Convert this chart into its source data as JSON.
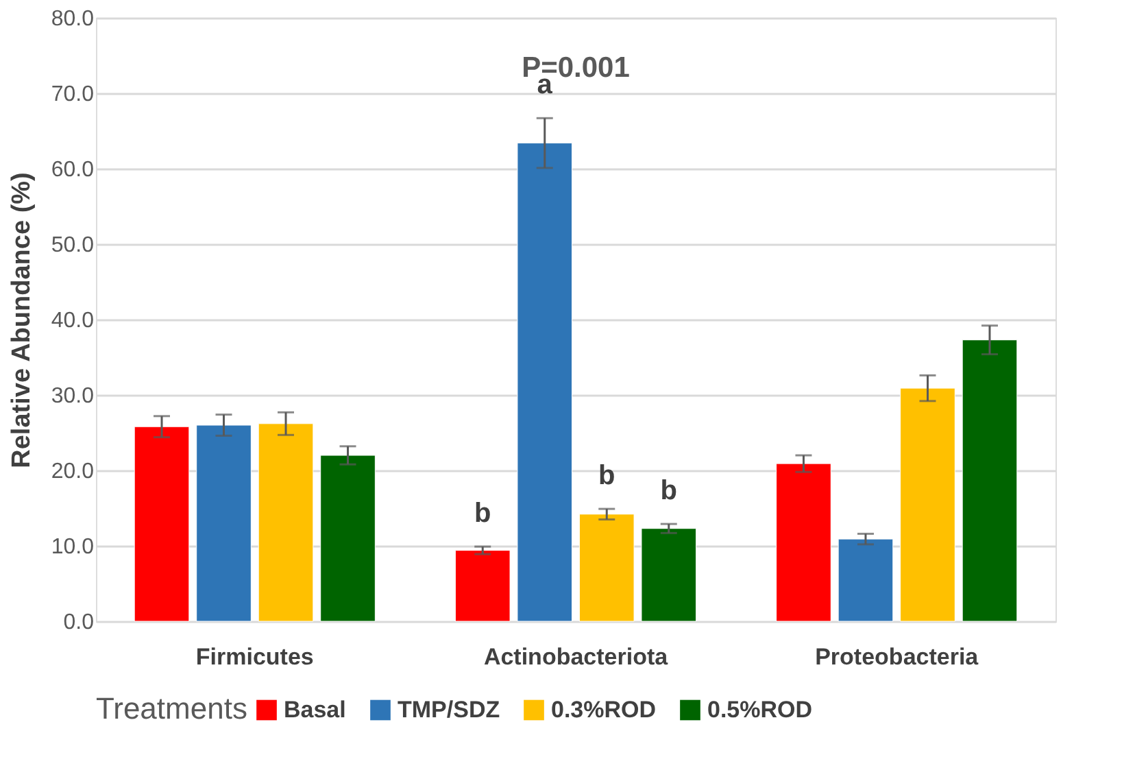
{
  "chart_data": {
    "type": "bar",
    "ylabel": "Relative Abundance (%)",
    "legend_title": "Treatments",
    "categories": [
      "Firmicutes",
      "Actinobacteriota",
      "Proteobacteria"
    ],
    "series": [
      {
        "name": "Basal",
        "color": "#ff0000",
        "values": [
          25.8,
          9.4,
          20.9
        ],
        "errors": [
          1.4,
          0.5,
          1.1
        ],
        "value_labels": [
          null,
          "b",
          null
        ]
      },
      {
        "name": "TMP/SDZ",
        "color": "#2e75b6",
        "values": [
          26.0,
          63.4,
          10.9
        ],
        "errors": [
          1.4,
          3.3,
          0.7
        ],
        "value_labels": [
          null,
          "a",
          null
        ]
      },
      {
        "name": "0.3%ROD",
        "color": "#ffc000",
        "values": [
          26.2,
          14.2,
          30.9
        ],
        "errors": [
          1.5,
          0.7,
          1.7
        ],
        "value_labels": [
          null,
          "b",
          null
        ]
      },
      {
        "name": "0.5%ROD",
        "color": "#006400",
        "values": [
          22.0,
          12.3,
          37.3
        ],
        "errors": [
          1.2,
          0.6,
          1.9
        ],
        "value_labels": [
          null,
          "b",
          null
        ]
      }
    ],
    "ylim": [
      0,
      80
    ],
    "yticks": [
      {
        "value": 0,
        "label": "0.0"
      },
      {
        "value": 10,
        "label": "10.0"
      },
      {
        "value": 20,
        "label": "20.0"
      },
      {
        "value": 30,
        "label": "30.0"
      },
      {
        "value": 40,
        "label": "40.0"
      },
      {
        "value": 50,
        "label": "50.0"
      },
      {
        "value": 60,
        "label": "60.0"
      },
      {
        "value": 70,
        "label": "70.0"
      },
      {
        "value": 80,
        "label": "80.0"
      }
    ],
    "annotations": [
      "P=0.001"
    ],
    "grid": "y",
    "legend": "bottom"
  }
}
